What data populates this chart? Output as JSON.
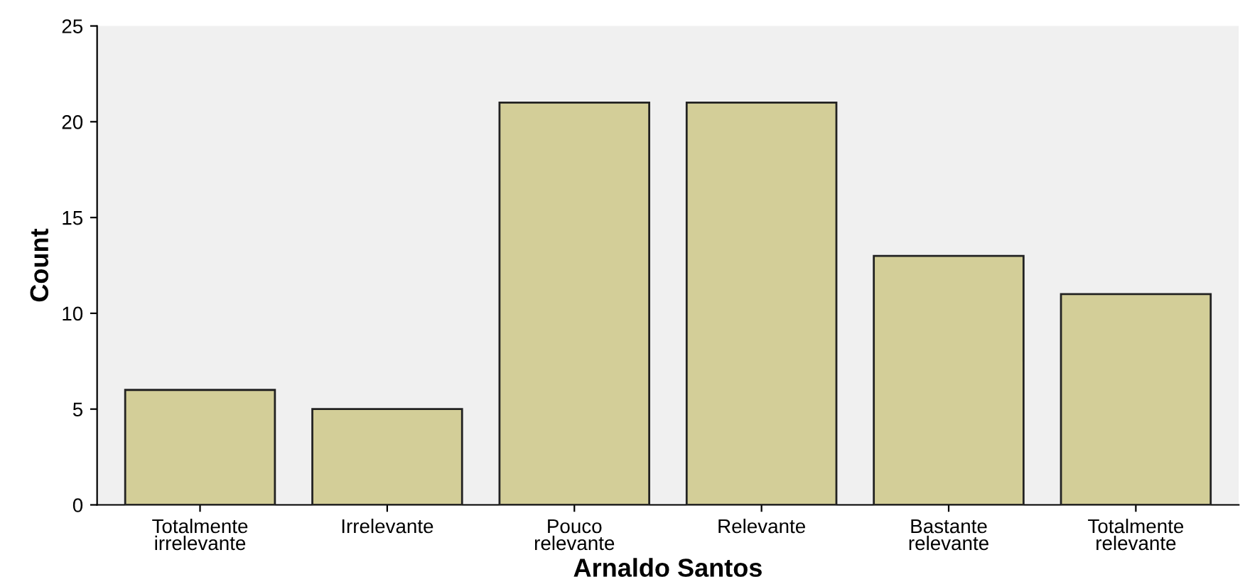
{
  "chart_data": {
    "type": "bar",
    "xlabel": "Arnaldo Santos",
    "ylabel": "Count",
    "categories": [
      "Totalmente\nirrelevante",
      "Irrelevante",
      "Pouco\nrelevante",
      "Relevante",
      "Bastante\nrelevante",
      "Totalmente\nrelevante"
    ],
    "values": [
      6,
      5,
      21,
      21,
      13,
      11
    ],
    "color": "#d3ce98",
    "ylim": [
      0,
      25
    ],
    "yticks": [
      0,
      5,
      10,
      15,
      20,
      25
    ],
    "grid": false
  }
}
